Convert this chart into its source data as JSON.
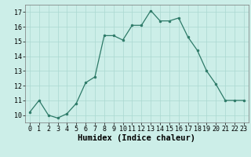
{
  "x": [
    0,
    1,
    2,
    3,
    4,
    5,
    6,
    7,
    8,
    9,
    10,
    11,
    12,
    13,
    14,
    15,
    16,
    17,
    18,
    19,
    20,
    21,
    22,
    23
  ],
  "y": [
    10.2,
    11.0,
    10.0,
    9.8,
    10.1,
    10.8,
    12.2,
    12.6,
    15.4,
    15.4,
    15.1,
    16.1,
    16.1,
    17.1,
    16.4,
    16.4,
    16.6,
    15.3,
    14.4,
    13.0,
    12.1,
    11.0,
    11.0,
    11.0
  ],
  "xlabel": "Humidex (Indice chaleur)",
  "ylim": [
    9.5,
    17.5
  ],
  "xlim": [
    -0.5,
    23.5
  ],
  "yticks": [
    10,
    11,
    12,
    13,
    14,
    15,
    16,
    17
  ],
  "xticks": [
    0,
    1,
    2,
    3,
    4,
    5,
    6,
    7,
    8,
    9,
    10,
    11,
    12,
    13,
    14,
    15,
    16,
    17,
    18,
    19,
    20,
    21,
    22,
    23
  ],
  "line_color": "#2d7a68",
  "marker_color": "#2d7a68",
  "bg_color": "#cceee8",
  "grid_color": "#aad8d0",
  "xlabel_fontsize": 7.5,
  "tick_fontsize": 6.0
}
